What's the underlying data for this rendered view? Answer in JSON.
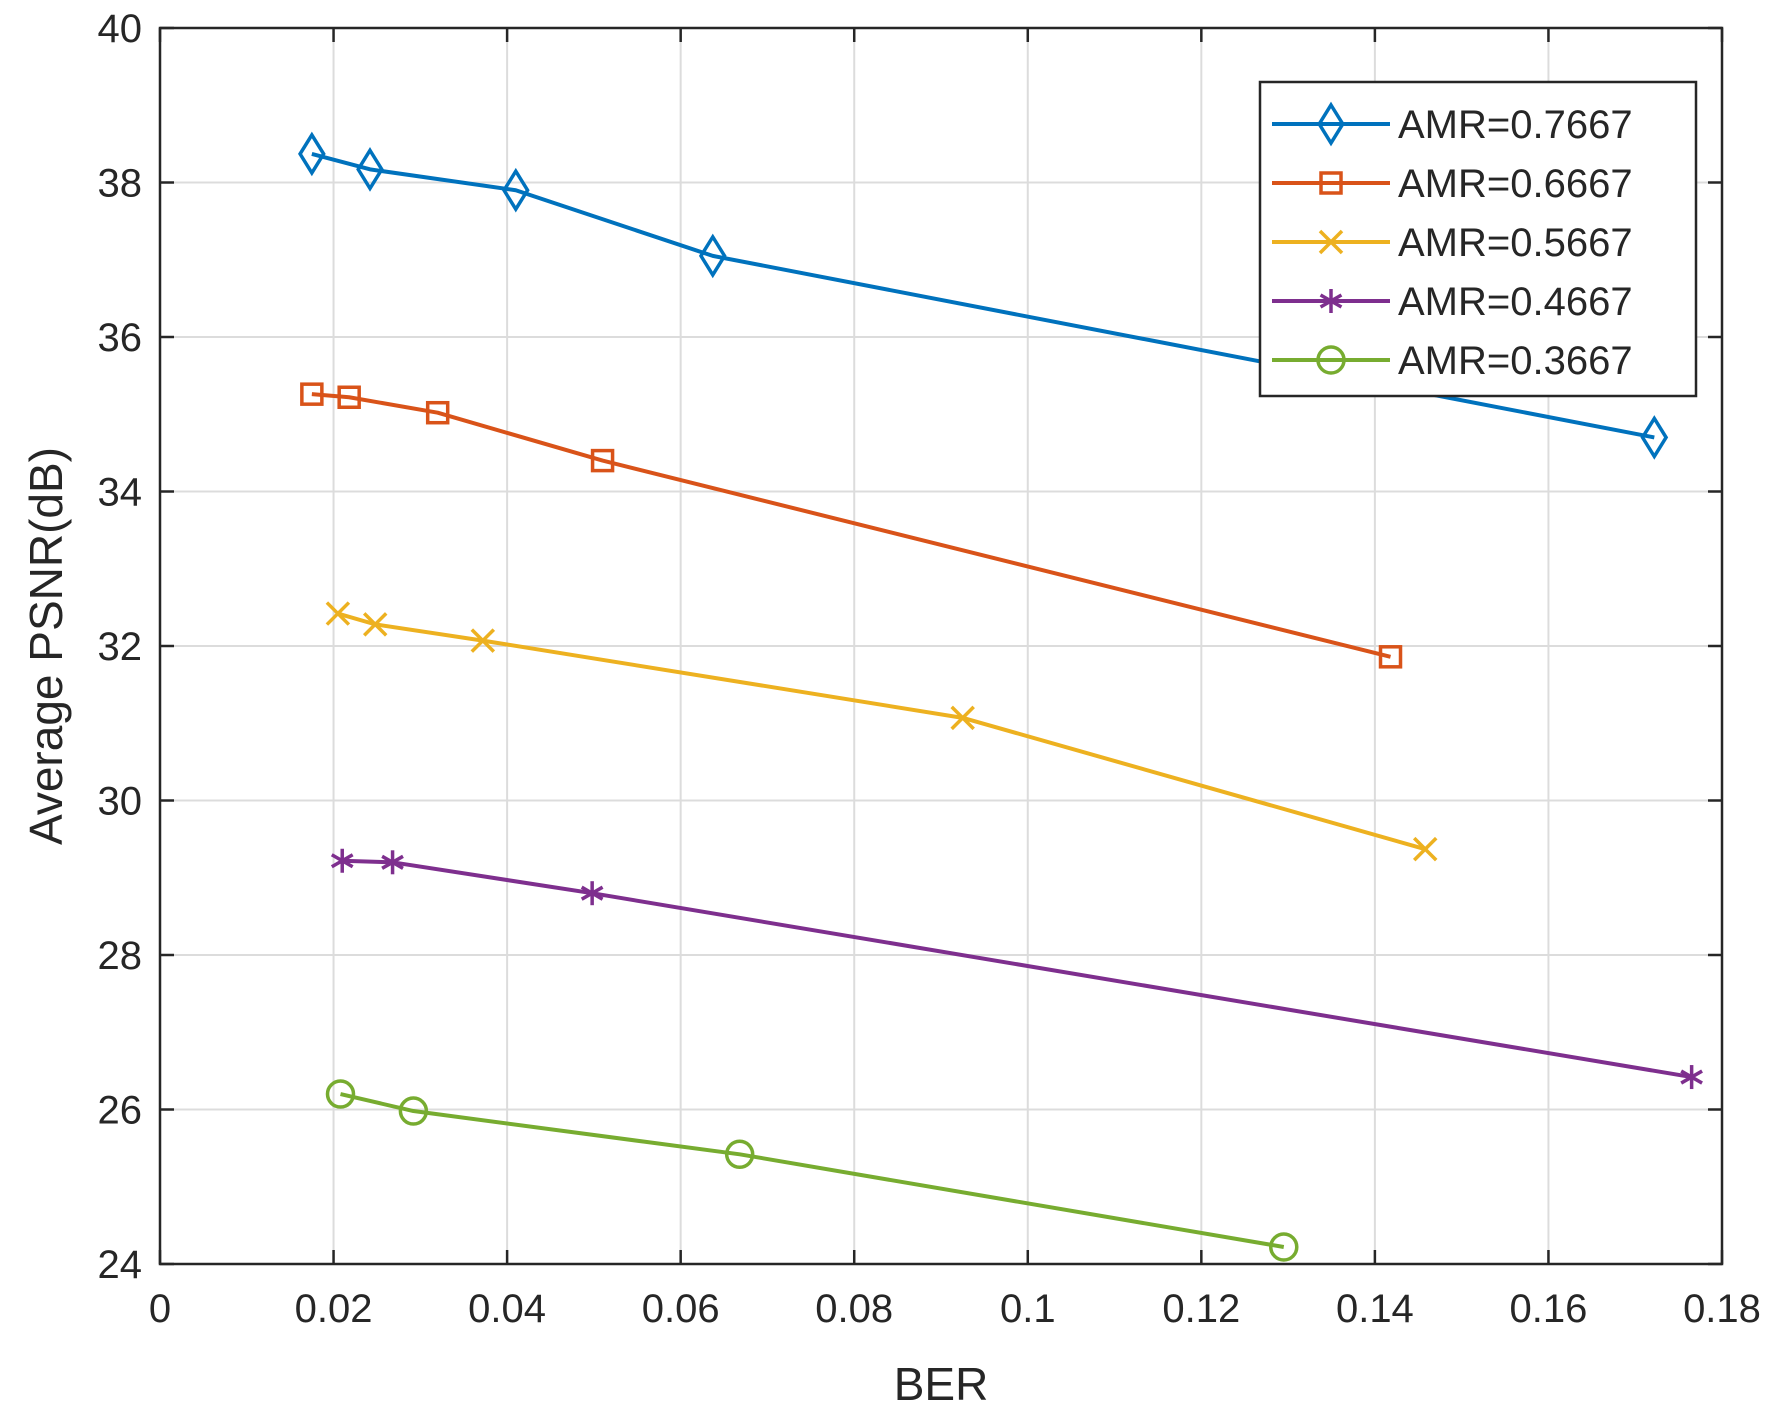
{
  "chart_data": {
    "type": "line",
    "title": "",
    "xlabel": "BER",
    "ylabel": "Average PSNR(dB)",
    "xlim": [
      0,
      0.18
    ],
    "ylim": [
      24,
      40
    ],
    "grid": true,
    "legend_position": "top-right",
    "x_ticks": [
      "0",
      "0.02",
      "0.04",
      "0.06",
      "0.08",
      "0.1",
      "0.12",
      "0.14",
      "0.16",
      "0.18"
    ],
    "y_ticks": [
      "24",
      "26",
      "28",
      "30",
      "32",
      "34",
      "36",
      "38",
      "40"
    ],
    "series": [
      {
        "name": "AMR=0.7667",
        "color": "#0072BD",
        "marker": "diamond",
        "x": [
          0.0175,
          0.0242,
          0.041,
          0.0637,
          0.1722
        ],
        "y": [
          38.37,
          38.17,
          37.9,
          37.05,
          34.7
        ]
      },
      {
        "name": "AMR=0.6667",
        "color": "#D95319",
        "marker": "square",
        "x": [
          0.0175,
          0.0218,
          0.032,
          0.051,
          0.1418
        ],
        "y": [
          35.26,
          35.22,
          35.02,
          34.4,
          31.86
        ]
      },
      {
        "name": "AMR=0.5667",
        "color": "#EDB120",
        "marker": "x",
        "x": [
          0.0205,
          0.0248,
          0.0372,
          0.0925,
          0.1458
        ],
        "y": [
          32.42,
          32.28,
          32.07,
          31.07,
          29.37
        ]
      },
      {
        "name": "AMR=0.4667",
        "color": "#7E2F8E",
        "marker": "asterisk",
        "x": [
          0.021,
          0.0268,
          0.0498,
          0.1765
        ],
        "y": [
          29.22,
          29.2,
          28.8,
          26.42
        ]
      },
      {
        "name": "AMR=0.3667",
        "color": "#77AC30",
        "marker": "circle",
        "x": [
          0.0208,
          0.0292,
          0.0668,
          0.1295
        ],
        "y": [
          26.2,
          25.98,
          25.42,
          24.22
        ]
      }
    ]
  }
}
